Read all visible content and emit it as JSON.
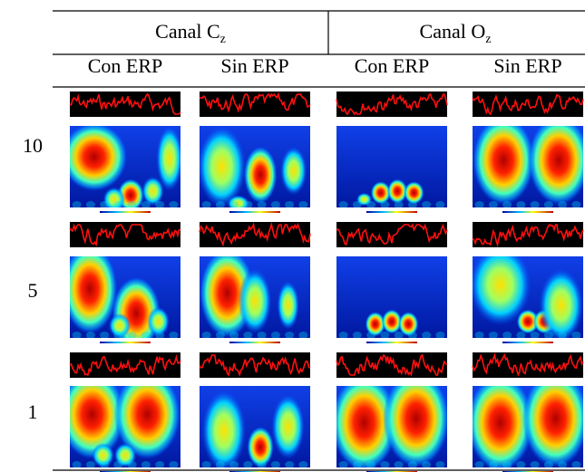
{
  "table": {
    "group_headers": [
      {
        "main": "Canal C",
        "sub": "z"
      },
      {
        "main": "Canal O",
        "sub": "z"
      }
    ],
    "sub_headers": [
      "Con ERP",
      "Sin ERP",
      "Con ERP",
      "Sin ERP"
    ],
    "row_labels": [
      "10",
      "5",
      "1"
    ]
  }
}
